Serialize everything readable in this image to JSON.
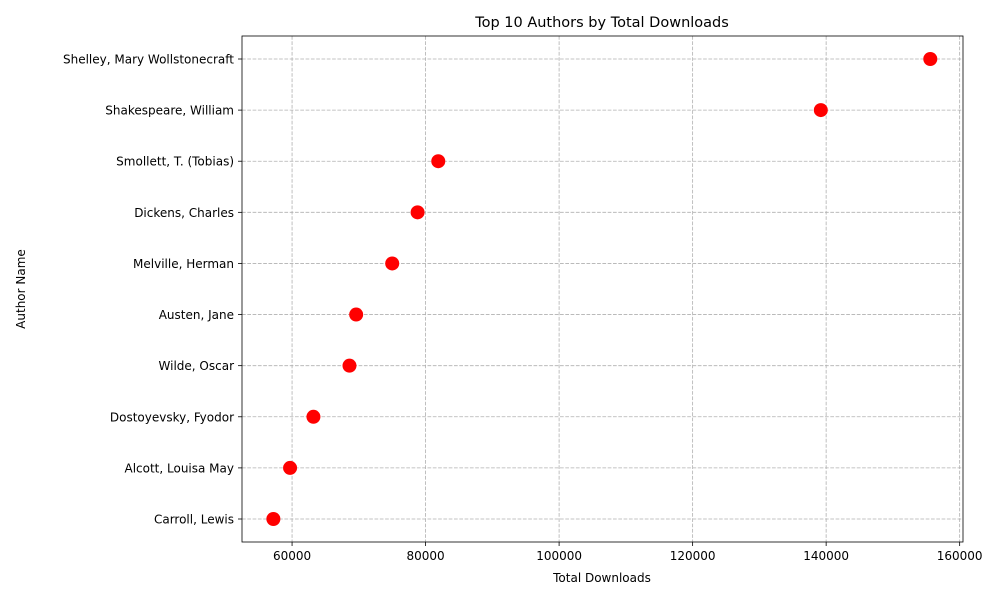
{
  "chart_data": {
    "type": "scatter",
    "title": "Top 10 Authors by Total Downloads",
    "xlabel": "Total Downloads",
    "ylabel": "Author Name",
    "xlim": [
      52500,
      160500
    ],
    "xticks": [
      60000,
      80000,
      100000,
      120000,
      140000,
      160000
    ],
    "xtick_labels": [
      "60000",
      "80000",
      "100000",
      "120000",
      "140000",
      "160000"
    ],
    "grid": true,
    "marker_color": "#ff0000",
    "categories": [
      "Shelley, Mary Wollstonecraft",
      "Shakespeare, William",
      "Smollett, T. (Tobias)",
      "Dickens, Charles",
      "Melville, Herman",
      "Austen, Jane",
      "Wilde, Oscar",
      "Dostoyevsky, Fyodor",
      "Alcott, Louisa May",
      "Carroll, Lewis"
    ],
    "values": [
      155600,
      139200,
      81900,
      78800,
      75000,
      69600,
      68600,
      63200,
      59700,
      57200
    ]
  }
}
